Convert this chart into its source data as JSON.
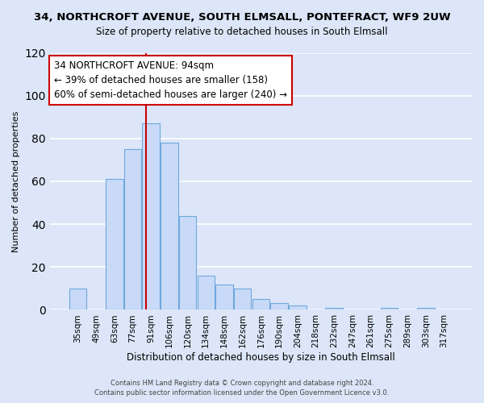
{
  "title": "34, NORTHCROFT AVENUE, SOUTH ELMSALL, PONTEFRACT, WF9 2UW",
  "subtitle": "Size of property relative to detached houses in South Elmsall",
  "xlabel": "Distribution of detached houses by size in South Elmsall",
  "ylabel": "Number of detached properties",
  "bar_labels": [
    "35sqm",
    "49sqm",
    "63sqm",
    "77sqm",
    "91sqm",
    "106sqm",
    "120sqm",
    "134sqm",
    "148sqm",
    "162sqm",
    "176sqm",
    "190sqm",
    "204sqm",
    "218sqm",
    "232sqm",
    "247sqm",
    "261sqm",
    "275sqm",
    "289sqm",
    "303sqm",
    "317sqm"
  ],
  "bar_heights": [
    10,
    0,
    61,
    75,
    87,
    78,
    44,
    16,
    12,
    10,
    5,
    3,
    2,
    0,
    1,
    0,
    0,
    1,
    0,
    1,
    0
  ],
  "bar_color": "#c9daf8",
  "bar_edge_color": "#6fa8dc",
  "marker_line_color": "#cc0000",
  "annotation_line1": "34 NORTHCROFT AVENUE: 94sqm",
  "annotation_line2": "← 39% of detached houses are smaller (158)",
  "annotation_line3": "60% of semi-detached houses are larger (240) →",
  "annotation_box_color": "#ffffff",
  "annotation_box_edge": "#cc0000",
  "footer1": "Contains HM Land Registry data © Crown copyright and database right 2024.",
  "footer2": "Contains public sector information licensed under the Open Government Licence v3.0.",
  "ylim": [
    0,
    120
  ],
  "yticks": [
    0,
    20,
    40,
    60,
    80,
    100,
    120
  ],
  "bg_color": "#dce6f8",
  "grid_color": "#ffffff",
  "title_fontsize": 9.5,
  "subtitle_fontsize": 8.5
}
